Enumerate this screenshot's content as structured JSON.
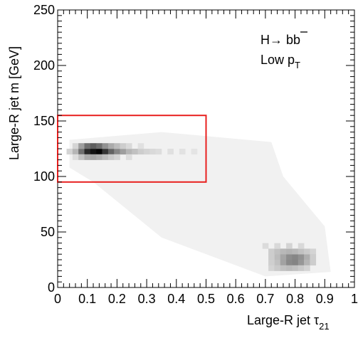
{
  "chart_data": {
    "type": "heatmap",
    "xlabel": "Large-R jet  τ",
    "xlabel_subscript": "21",
    "ylabel": "Large-R jet m [GeV]",
    "xlim": [
      0,
      1
    ],
    "ylim": [
      0,
      250
    ],
    "x_ticks": [
      "0",
      "0.1",
      "0.2",
      "0.3",
      "0.4",
      "0.5",
      "0.6",
      "0.7",
      "0.8",
      "0.9",
      "1"
    ],
    "y_ticks": [
      "0",
      "50",
      "100",
      "150",
      "200",
      "250"
    ],
    "annotation_line1": "H→ bb",
    "annotation_line2_main": "Low p",
    "annotation_line2_sub": "T",
    "selection_box": {
      "x_range": [
        0,
        0.5
      ],
      "y_range": [
        95,
        155
      ]
    },
    "selection_box_color": "#e8201f",
    "bin_size": {
      "x": 0.02,
      "y": 5
    },
    "bins": [
      {
        "x": 0.04,
        "y": 122.5,
        "v": 0.12
      },
      {
        "x": 0.06,
        "y": 122.5,
        "v": 0.25
      },
      {
        "x": 0.08,
        "y": 122.5,
        "v": 0.55
      },
      {
        "x": 0.1,
        "y": 122.5,
        "v": 0.85
      },
      {
        "x": 0.12,
        "y": 122.5,
        "v": 0.95
      },
      {
        "x": 0.14,
        "y": 122.5,
        "v": 1.0
      },
      {
        "x": 0.16,
        "y": 122.5,
        "v": 0.8
      },
      {
        "x": 0.18,
        "y": 122.5,
        "v": 0.6
      },
      {
        "x": 0.2,
        "y": 122.5,
        "v": 0.45
      },
      {
        "x": 0.22,
        "y": 122.5,
        "v": 0.35
      },
      {
        "x": 0.24,
        "y": 122.5,
        "v": 0.25
      },
      {
        "x": 0.26,
        "y": 122.5,
        "v": 0.2
      },
      {
        "x": 0.28,
        "y": 122.5,
        "v": 0.15
      },
      {
        "x": 0.3,
        "y": 122.5,
        "v": 0.12
      },
      {
        "x": 0.32,
        "y": 122.5,
        "v": 0.1
      },
      {
        "x": 0.34,
        "y": 122.5,
        "v": 0.08
      },
      {
        "x": 0.38,
        "y": 122.5,
        "v": 0.07
      },
      {
        "x": 0.42,
        "y": 122.5,
        "v": 0.06
      },
      {
        "x": 0.46,
        "y": 122.5,
        "v": 0.05
      },
      {
        "x": 0.06,
        "y": 127.5,
        "v": 0.12
      },
      {
        "x": 0.08,
        "y": 127.5,
        "v": 0.35
      },
      {
        "x": 0.1,
        "y": 127.5,
        "v": 0.55
      },
      {
        "x": 0.12,
        "y": 127.5,
        "v": 0.62
      },
      {
        "x": 0.14,
        "y": 127.5,
        "v": 0.55
      },
      {
        "x": 0.16,
        "y": 127.5,
        "v": 0.4
      },
      {
        "x": 0.18,
        "y": 127.5,
        "v": 0.3
      },
      {
        "x": 0.2,
        "y": 127.5,
        "v": 0.22
      },
      {
        "x": 0.22,
        "y": 127.5,
        "v": 0.15
      },
      {
        "x": 0.24,
        "y": 127.5,
        "v": 0.1
      },
      {
        "x": 0.28,
        "y": 127.5,
        "v": 0.07
      },
      {
        "x": 0.06,
        "y": 117.5,
        "v": 0.08
      },
      {
        "x": 0.08,
        "y": 117.5,
        "v": 0.2
      },
      {
        "x": 0.1,
        "y": 117.5,
        "v": 0.3
      },
      {
        "x": 0.12,
        "y": 117.5,
        "v": 0.32
      },
      {
        "x": 0.14,
        "y": 117.5,
        "v": 0.28
      },
      {
        "x": 0.16,
        "y": 117.5,
        "v": 0.22
      },
      {
        "x": 0.18,
        "y": 117.5,
        "v": 0.16
      },
      {
        "x": 0.2,
        "y": 117.5,
        "v": 0.12
      },
      {
        "x": 0.24,
        "y": 117.5,
        "v": 0.08
      },
      {
        "x": 0.74,
        "y": 27.5,
        "v": 0.22
      },
      {
        "x": 0.76,
        "y": 27.5,
        "v": 0.32
      },
      {
        "x": 0.78,
        "y": 27.5,
        "v": 0.42
      },
      {
        "x": 0.8,
        "y": 27.5,
        "v": 0.45
      },
      {
        "x": 0.82,
        "y": 27.5,
        "v": 0.4
      },
      {
        "x": 0.84,
        "y": 27.5,
        "v": 0.28
      },
      {
        "x": 0.74,
        "y": 22.5,
        "v": 0.2
      },
      {
        "x": 0.76,
        "y": 22.5,
        "v": 0.33
      },
      {
        "x": 0.78,
        "y": 22.5,
        "v": 0.44
      },
      {
        "x": 0.8,
        "y": 22.5,
        "v": 0.46
      },
      {
        "x": 0.82,
        "y": 22.5,
        "v": 0.38
      },
      {
        "x": 0.84,
        "y": 22.5,
        "v": 0.25
      },
      {
        "x": 0.72,
        "y": 32.5,
        "v": 0.15
      },
      {
        "x": 0.74,
        "y": 32.5,
        "v": 0.2
      },
      {
        "x": 0.76,
        "y": 32.5,
        "v": 0.24
      },
      {
        "x": 0.78,
        "y": 32.5,
        "v": 0.26
      },
      {
        "x": 0.8,
        "y": 32.5,
        "v": 0.24
      },
      {
        "x": 0.82,
        "y": 32.5,
        "v": 0.2
      },
      {
        "x": 0.84,
        "y": 32.5,
        "v": 0.16
      },
      {
        "x": 0.86,
        "y": 32.5,
        "v": 0.12
      },
      {
        "x": 0.72,
        "y": 17.5,
        "v": 0.12
      },
      {
        "x": 0.74,
        "y": 17.5,
        "v": 0.16
      },
      {
        "x": 0.76,
        "y": 17.5,
        "v": 0.2
      },
      {
        "x": 0.78,
        "y": 17.5,
        "v": 0.22
      },
      {
        "x": 0.8,
        "y": 17.5,
        "v": 0.2
      },
      {
        "x": 0.82,
        "y": 17.5,
        "v": 0.16
      },
      {
        "x": 0.84,
        "y": 17.5,
        "v": 0.12
      },
      {
        "x": 0.72,
        "y": 22.5,
        "v": 0.14
      },
      {
        "x": 0.72,
        "y": 27.5,
        "v": 0.15
      },
      {
        "x": 0.86,
        "y": 22.5,
        "v": 0.15
      },
      {
        "x": 0.86,
        "y": 27.5,
        "v": 0.15
      },
      {
        "x": 0.7,
        "y": 37.5,
        "v": 0.09
      },
      {
        "x": 0.74,
        "y": 37.5,
        "v": 0.1
      },
      {
        "x": 0.78,
        "y": 37.5,
        "v": 0.12
      },
      {
        "x": 0.82,
        "y": 37.5,
        "v": 0.1
      }
    ]
  }
}
